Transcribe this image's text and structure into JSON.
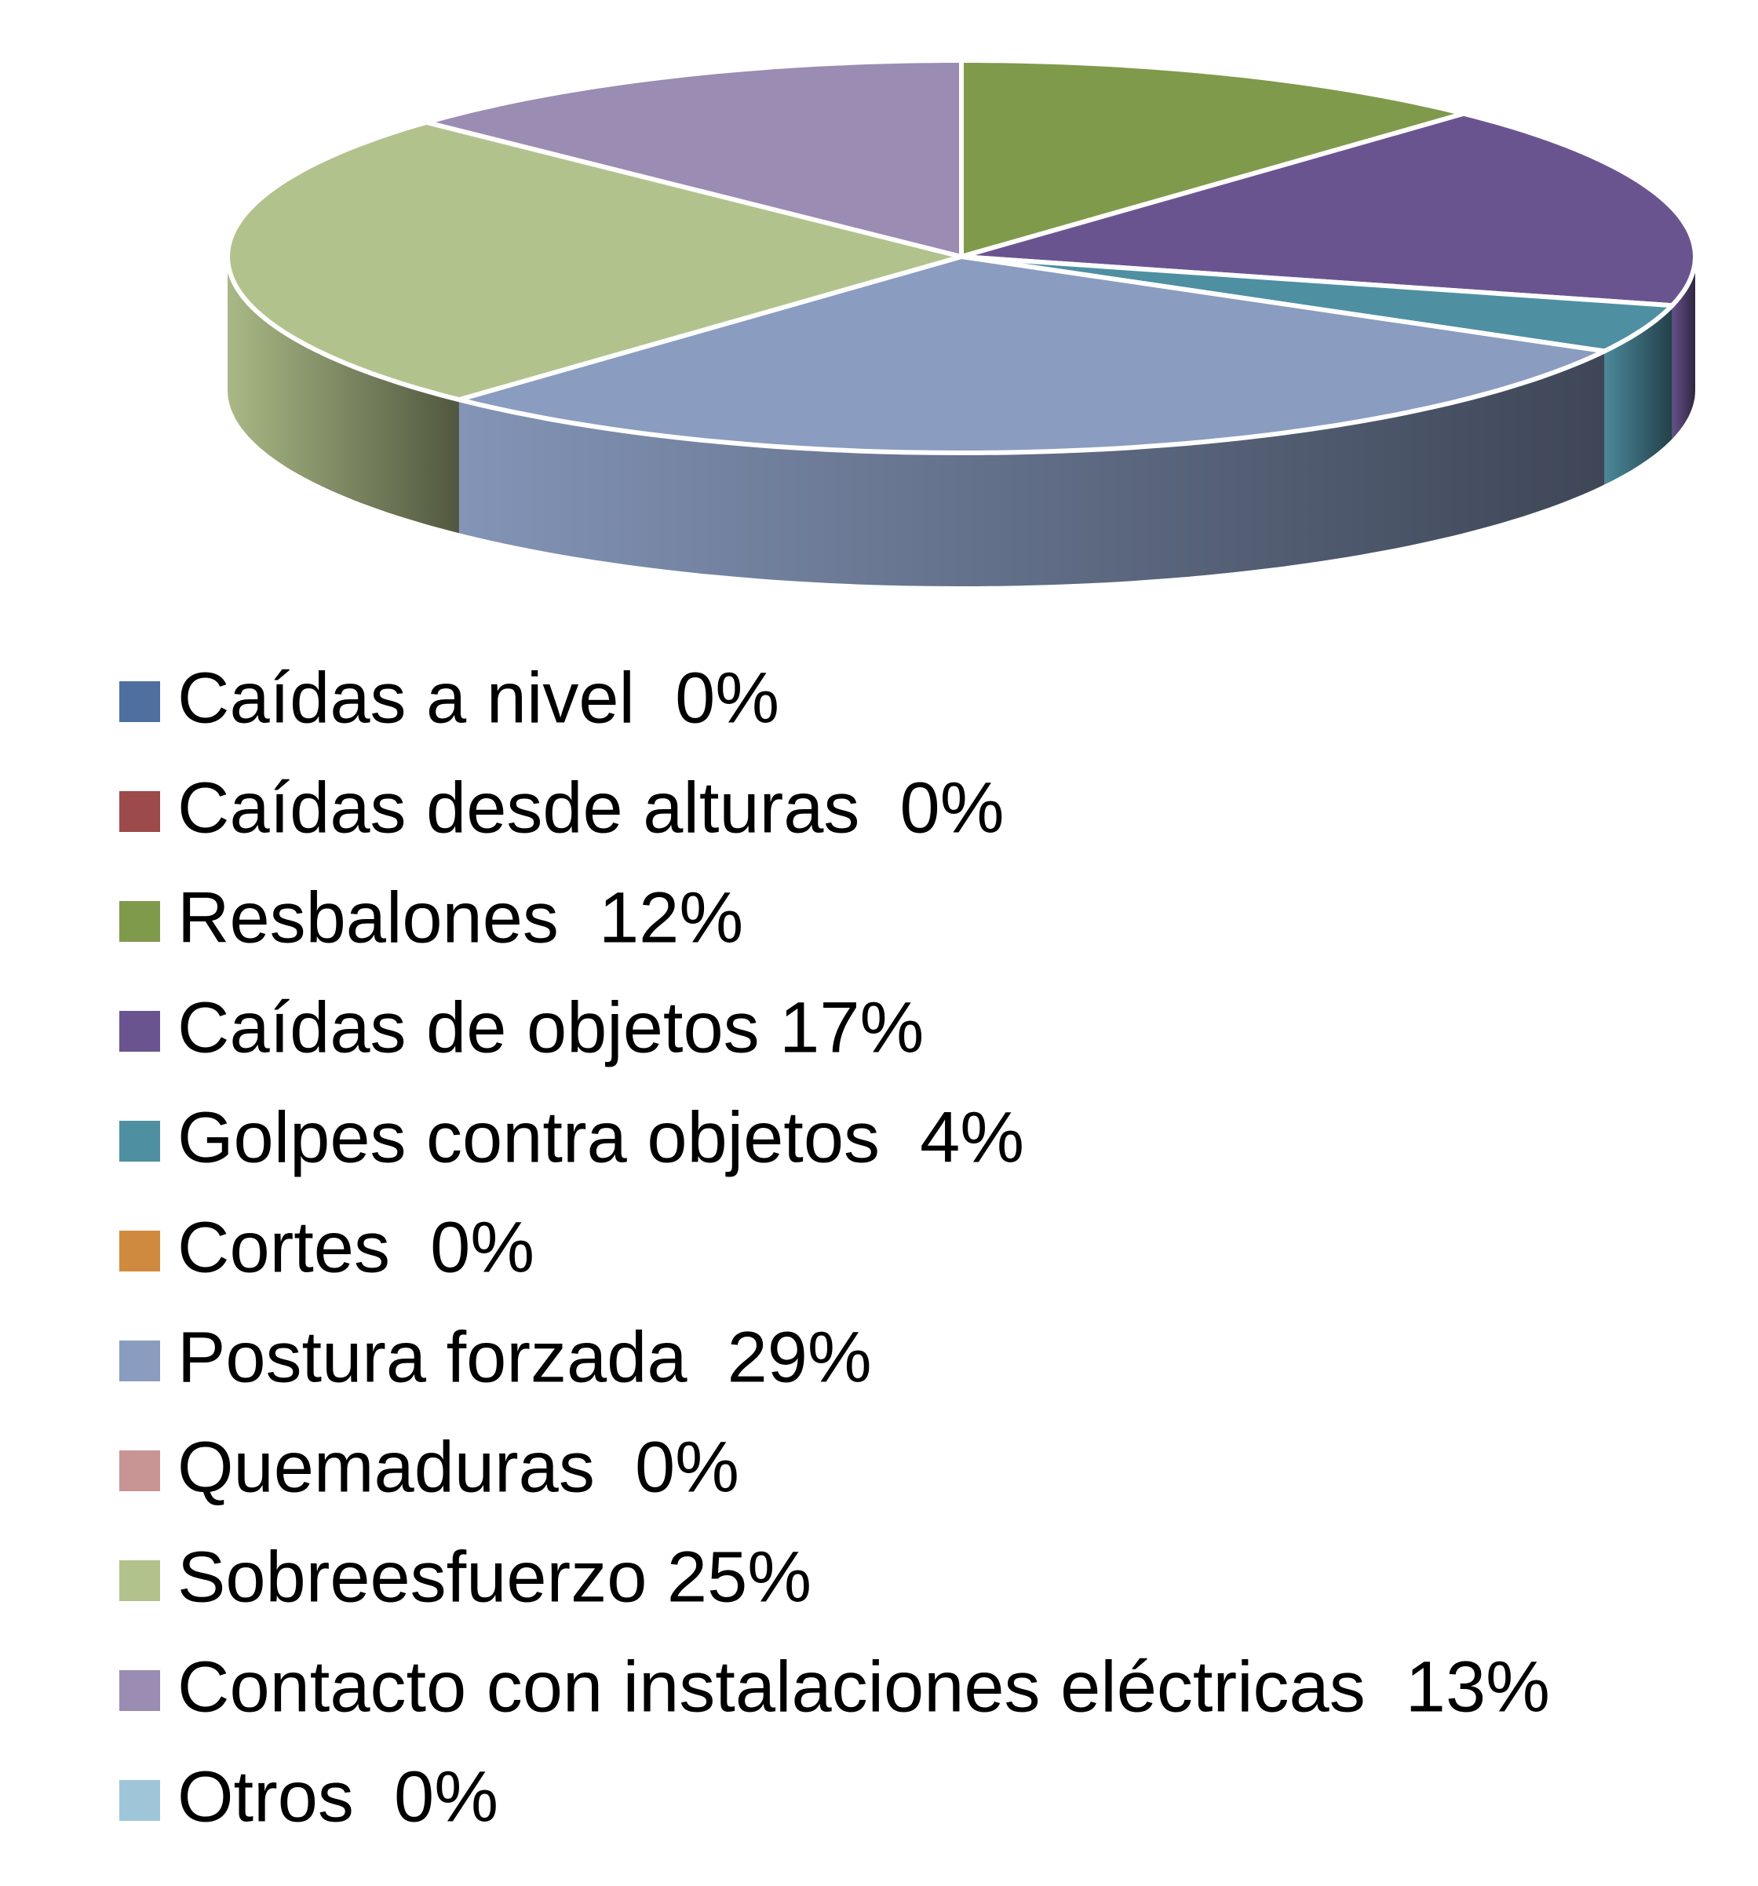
{
  "chart_data": {
    "type": "pie",
    "categories": [
      "Caídas a nivel  0%",
      "Caídas desde alturas  0%",
      "Resbalones  12%",
      "Caídas de objetos 17%",
      "Golpes contra objetos  4%",
      "Cortes  0%",
      "Postura forzada  29%",
      "Quemaduras  0%",
      "Sobreesfuerzo 25%",
      "Contacto con instalaciones eléctricas  13%",
      "Otros  0%"
    ],
    "values": [
      0,
      0,
      12,
      17,
      4,
      0,
      29,
      0,
      25,
      13,
      0
    ],
    "colors": [
      "#4f6fa0",
      "#9c4a4a",
      "#809a4c",
      "#6a5490",
      "#4f8fa2",
      "#d08a40",
      "#8a9cc0",
      "#c89494",
      "#b2c28c",
      "#9a8cb2",
      "#9ec6d8"
    ],
    "legend": "bottom"
  }
}
